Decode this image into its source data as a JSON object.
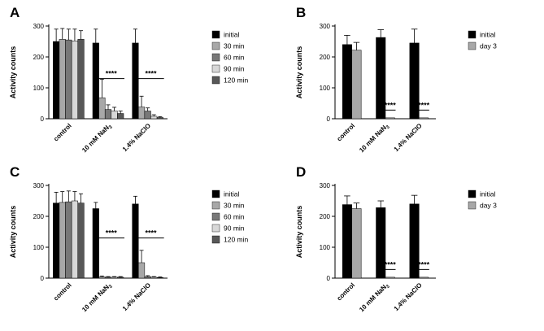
{
  "figure_background": "#ffffff",
  "axis_color": "#000000",
  "chart_data": [
    {
      "letter": "A",
      "type": "bar",
      "title": "",
      "ylabel": "Activity counts",
      "ylim": [
        0,
        300
      ],
      "yticks": [
        0,
        100,
        200,
        300
      ],
      "grid": false,
      "legend_position": "right",
      "categories": [
        {
          "text": "control",
          "sub": ""
        },
        {
          "text": "10 mM NaN",
          "sub": "3"
        },
        {
          "text": "1.4% NaClO",
          "sub": ""
        }
      ],
      "series": [
        {
          "name": "initial",
          "color": "#000000",
          "values": [
            250,
            245,
            245
          ],
          "errors": [
            40,
            45,
            45
          ]
        },
        {
          "name": "30 min",
          "color": "#a8a8a8",
          "values": [
            257,
            68,
            38
          ],
          "errors": [
            35,
            60,
            35
          ]
        },
        {
          "name": "60 min",
          "color": "#787878",
          "values": [
            255,
            30,
            25
          ],
          "errors": [
            35,
            15,
            10
          ]
        },
        {
          "name": "90 min",
          "color": "#d8d8d8",
          "values": [
            252,
            25,
            8
          ],
          "errors": [
            38,
            12,
            5
          ]
        },
        {
          "name": "120 min",
          "color": "#585858",
          "values": [
            257,
            17,
            4
          ],
          "errors": [
            28,
            8,
            3
          ]
        }
      ],
      "significance": [
        {
          "category": 1,
          "from_series": 1,
          "to_series": 4,
          "y": 130,
          "label": "****"
        },
        {
          "category": 2,
          "from_series": 1,
          "to_series": 4,
          "y": 130,
          "label": "****"
        }
      ]
    },
    {
      "letter": "B",
      "type": "bar",
      "title": "",
      "ylabel": "Activity counts",
      "ylim": [
        0,
        300
      ],
      "yticks": [
        0,
        100,
        200,
        300
      ],
      "grid": false,
      "legend_position": "right",
      "categories": [
        {
          "text": "control",
          "sub": ""
        },
        {
          "text": "10 mM NaN",
          "sub": "3"
        },
        {
          "text": "1.4% NaClO",
          "sub": ""
        }
      ],
      "series": [
        {
          "name": "initial",
          "color": "#000000",
          "values": [
            240,
            263,
            245
          ],
          "errors": [
            30,
            25,
            45
          ]
        },
        {
          "name": "day 3",
          "color": "#a8a8a8",
          "values": [
            222,
            3,
            3
          ],
          "errors": [
            25,
            0,
            0
          ]
        }
      ],
      "significance": [
        {
          "category": 1,
          "from_series": 1,
          "to_series": 1,
          "y": 28,
          "label": "****"
        },
        {
          "category": 2,
          "from_series": 1,
          "to_series": 1,
          "y": 28,
          "label": "****"
        }
      ]
    },
    {
      "letter": "C",
      "type": "bar",
      "title": "",
      "ylabel": "Activity counts",
      "ylim": [
        0,
        300
      ],
      "yticks": [
        0,
        100,
        200,
        300
      ],
      "grid": false,
      "legend_position": "right",
      "categories": [
        {
          "text": "control",
          "sub": ""
        },
        {
          "text": "10 mM NaN",
          "sub": "3"
        },
        {
          "text": "1.4% NaClO",
          "sub": ""
        }
      ],
      "series": [
        {
          "name": "initial",
          "color": "#000000",
          "values": [
            243,
            225,
            240
          ],
          "errors": [
            35,
            20,
            25
          ]
        },
        {
          "name": "30 min",
          "color": "#a8a8a8",
          "values": [
            245,
            4,
            50
          ],
          "errors": [
            35,
            3,
            40
          ]
        },
        {
          "name": "60 min",
          "color": "#787878",
          "values": [
            247,
            3,
            5
          ],
          "errors": [
            35,
            2,
            3
          ]
        },
        {
          "name": "90 min",
          "color": "#d8d8d8",
          "values": [
            250,
            3,
            3
          ],
          "errors": [
            30,
            2,
            2
          ]
        },
        {
          "name": "120 min",
          "color": "#585858",
          "values": [
            243,
            3,
            2
          ],
          "errors": [
            30,
            2,
            2
          ]
        }
      ],
      "significance": [
        {
          "category": 1,
          "from_series": 1,
          "to_series": 4,
          "y": 130,
          "label": "****"
        },
        {
          "category": 2,
          "from_series": 1,
          "to_series": 4,
          "y": 130,
          "label": "****"
        }
      ]
    },
    {
      "letter": "D",
      "type": "bar",
      "title": "",
      "ylabel": "Activity counts",
      "ylim": [
        0,
        300
      ],
      "yticks": [
        0,
        100,
        200,
        300
      ],
      "grid": false,
      "legend_position": "right",
      "categories": [
        {
          "text": "control",
          "sub": ""
        },
        {
          "text": "10 mM NaN",
          "sub": "3"
        },
        {
          "text": "1.4% NaClO",
          "sub": ""
        }
      ],
      "series": [
        {
          "name": "initial",
          "color": "#000000",
          "values": [
            238,
            228,
            240
          ],
          "errors": [
            28,
            22,
            28
          ]
        },
        {
          "name": "day 3",
          "color": "#a8a8a8",
          "values": [
            225,
            3,
            3
          ],
          "errors": [
            18,
            0,
            0
          ]
        }
      ],
      "significance": [
        {
          "category": 1,
          "from_series": 1,
          "to_series": 1,
          "y": 28,
          "label": "****"
        },
        {
          "category": 2,
          "from_series": 1,
          "to_series": 1,
          "y": 28,
          "label": "****"
        }
      ]
    }
  ]
}
